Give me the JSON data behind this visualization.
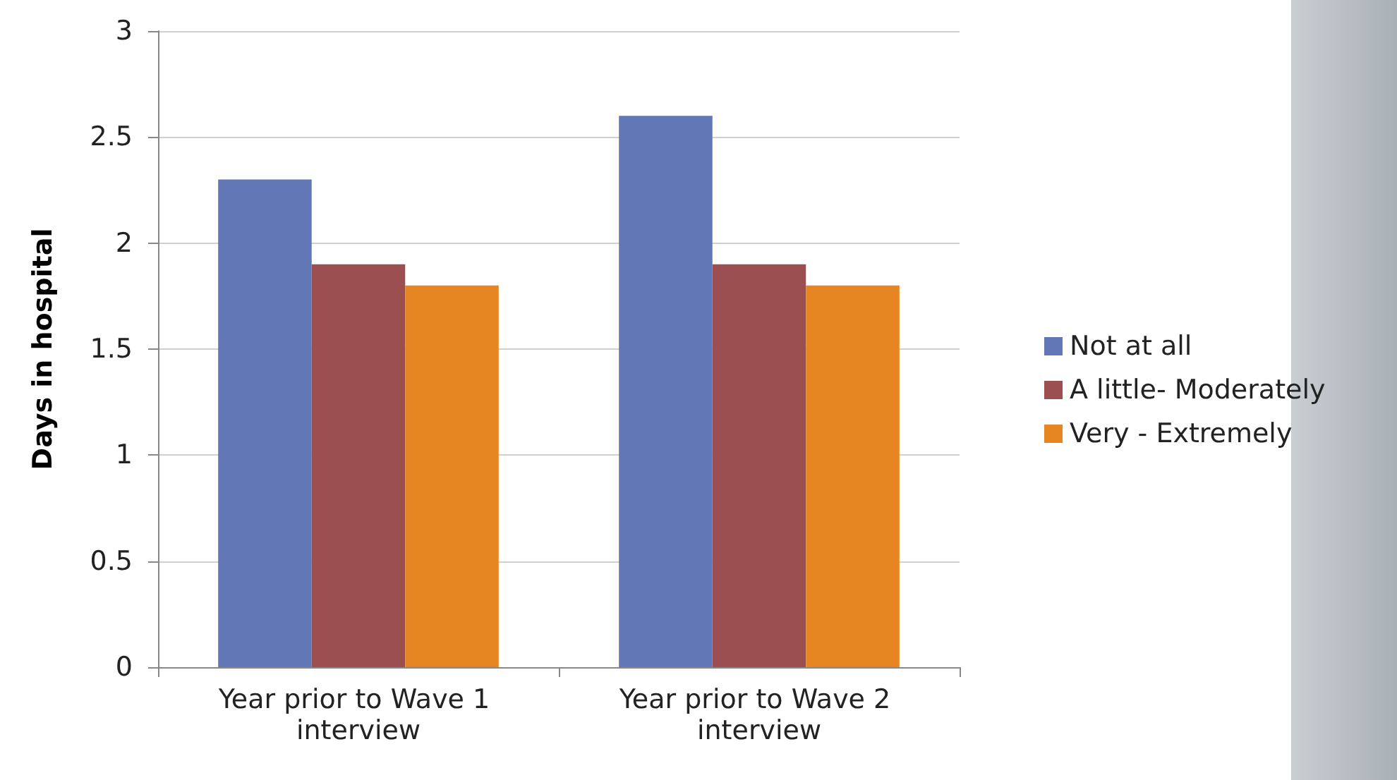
{
  "chart_data": {
    "type": "bar",
    "ylabel": "Days in hospital",
    "categories": [
      "Year prior to Wave 1 interview",
      "Year prior to Wave 2 interview"
    ],
    "series": [
      {
        "name": "Not at all",
        "color": "#6177b6",
        "values": [
          2.3,
          2.6
        ]
      },
      {
        "name": "A little- Moderately",
        "color": "#9c4f50",
        "values": [
          1.9,
          1.9
        ]
      },
      {
        "name": "Very - Extremely",
        "color": "#e58623",
        "values": [
          1.8,
          1.8
        ]
      }
    ],
    "ylim": [
      0,
      3
    ],
    "yticks": [
      0,
      0.5,
      1,
      1.5,
      2,
      2.5,
      3
    ],
    "grid": "y",
    "legend": "right"
  }
}
